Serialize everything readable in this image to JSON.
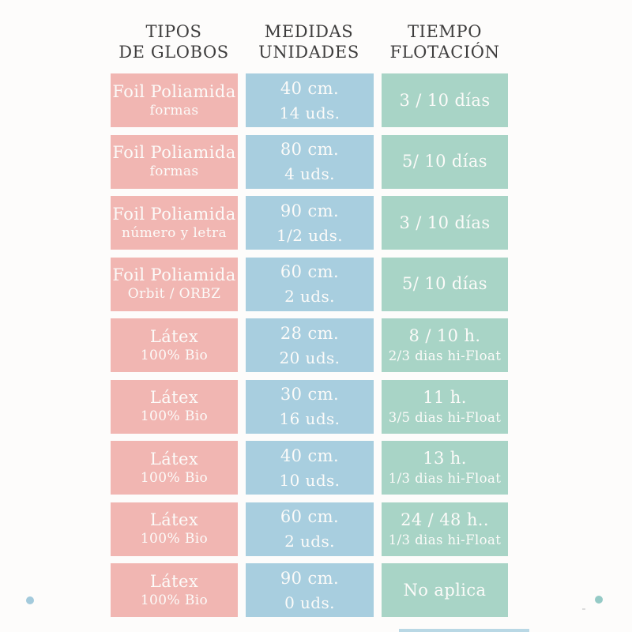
{
  "page": {
    "background": "#fdfcfb",
    "colors": {
      "tipos_cell": "#f1b6b2",
      "medidas_cell": "#a8cedf",
      "tiempo_cell": "#a8d4c6",
      "header_text": "#3e3d3d",
      "cell_text": "#fcfbf9",
      "dot_left": "#a3cadc",
      "dot_right": "#95cac6"
    }
  },
  "chart_data": {
    "type": "table",
    "title": "",
    "columns": [
      "TIPOS DE GLOBOS",
      "MEDIDAS UNIDADES",
      "TIEMPO FLOTACIÓN"
    ],
    "column_headers": [
      [
        "TIPOS",
        "DE GLOBOS"
      ],
      [
        "MEDIDAS",
        "UNIDADES"
      ],
      [
        "TIEMPO",
        "FLOTACIÓN"
      ]
    ],
    "rows": [
      [
        [
          "Foil Poliamida",
          "formas"
        ],
        [
          "40 cm.",
          "14 uds."
        ],
        [
          "3 / 10 días"
        ]
      ],
      [
        [
          "Foil Poliamida",
          "formas"
        ],
        [
          "80 cm.",
          "4 uds."
        ],
        [
          "5/ 10 días"
        ]
      ],
      [
        [
          "Foil Poliamida",
          "número y letra"
        ],
        [
          "90 cm.",
          "1/2 uds."
        ],
        [
          "3 / 10 días"
        ]
      ],
      [
        [
          "Foil Poliamida",
          "Orbit / ORBZ"
        ],
        [
          "60 cm.",
          "2 uds."
        ],
        [
          "5/ 10 días"
        ]
      ],
      [
        [
          "Látex",
          "100% Bio"
        ],
        [
          "28 cm.",
          "20 uds."
        ],
        [
          "8 / 10 h.",
          "2/3 dias hi-Float"
        ]
      ],
      [
        [
          "Látex",
          "100% Bio"
        ],
        [
          "30 cm.",
          "16 uds."
        ],
        [
          "11 h.",
          "3/5 dias hi-Float"
        ]
      ],
      [
        [
          "Látex",
          "100% Bio"
        ],
        [
          "40 cm.",
          "10 uds."
        ],
        [
          "13 h.",
          "1/3 dias hi-Float"
        ]
      ],
      [
        [
          "Látex",
          "100% Bio"
        ],
        [
          "60 cm.",
          "2 uds."
        ],
        [
          "24 / 48 h..",
          "1/3 dias hi-Float"
        ]
      ],
      [
        [
          "Látex",
          "100% Bio"
        ],
        [
          "90 cm.",
          "0 uds."
        ],
        [
          "No aplica"
        ]
      ]
    ]
  }
}
